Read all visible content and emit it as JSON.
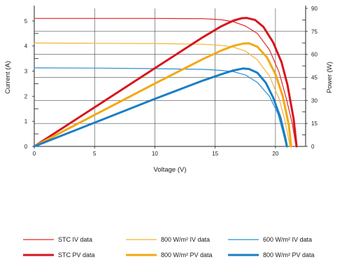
{
  "chart_data": {
    "type": "line",
    "title": "",
    "xlabel": "Voltage (V)",
    "ylabel_left": "Current (A)",
    "ylabel_right": "Power (W)",
    "xlim": [
      0,
      22.5
    ],
    "ylim_left": [
      0,
      5.5
    ],
    "ylim_right": [
      0,
      90
    ],
    "x_ticks": [
      "0",
      "5",
      "10",
      "15",
      "20"
    ],
    "y_left_ticks": [
      "0",
      "1",
      "2",
      "3",
      "4",
      "5"
    ],
    "y_right_ticks": [
      "0",
      "15",
      "30",
      "45",
      "60",
      "75",
      "90"
    ],
    "grid": "major",
    "legend_position": "bottom",
    "series": [
      {
        "name": "STC IV data",
        "axis": "left",
        "color": "#e3262b",
        "width": 1.2,
        "points": [
          [
            0,
            5.1
          ],
          [
            5,
            5.1
          ],
          [
            10,
            5.1
          ],
          [
            14,
            5.09
          ],
          [
            15.5,
            5.05
          ],
          [
            16.5,
            4.97
          ],
          [
            17.5,
            4.8
          ],
          [
            18.5,
            4.5
          ],
          [
            19.5,
            3.85
          ],
          [
            20.3,
            2.95
          ],
          [
            20.9,
            1.9
          ],
          [
            21.4,
            0.9
          ],
          [
            21.7,
            0
          ]
        ]
      },
      {
        "name": "800 W/m² IV data",
        "axis": "left",
        "color": "#f4b333",
        "width": 1.2,
        "points": [
          [
            0,
            4.12
          ],
          [
            5,
            4.11
          ],
          [
            10,
            4.1
          ],
          [
            14,
            4.07
          ],
          [
            15.5,
            4.03
          ],
          [
            16.5,
            3.96
          ],
          [
            17.5,
            3.8
          ],
          [
            18.5,
            3.45
          ],
          [
            19.5,
            2.8
          ],
          [
            20.3,
            1.9
          ],
          [
            20.8,
            1.0
          ],
          [
            21.2,
            0
          ]
        ]
      },
      {
        "name": "600 W/m² IV data",
        "axis": "left",
        "color": "#2a8fd0",
        "width": 1.2,
        "points": [
          [
            0,
            3.13
          ],
          [
            5,
            3.12
          ],
          [
            10,
            3.1
          ],
          [
            14,
            3.07
          ],
          [
            15.5,
            3.03
          ],
          [
            16.5,
            2.98
          ],
          [
            17.5,
            2.85
          ],
          [
            18.5,
            2.55
          ],
          [
            19.5,
            2.0
          ],
          [
            20.2,
            1.3
          ],
          [
            20.6,
            0.6
          ],
          [
            20.9,
            0
          ]
        ]
      },
      {
        "name": "STC PV data",
        "axis": "right",
        "color": "#d7151e",
        "width": 3,
        "points": [
          [
            0,
            0
          ],
          [
            5,
            25.5
          ],
          [
            10,
            51
          ],
          [
            14,
            71.3
          ],
          [
            15.5,
            78.3
          ],
          [
            16.5,
            82
          ],
          [
            17.2,
            83.6
          ],
          [
            17.6,
            83.8
          ],
          [
            18.3,
            82.5
          ],
          [
            19,
            78
          ],
          [
            19.8,
            68
          ],
          [
            20.5,
            55
          ],
          [
            21,
            40
          ],
          [
            21.5,
            18
          ],
          [
            21.75,
            0
          ]
        ]
      },
      {
        "name": "800 W/m² PV data",
        "axis": "right",
        "color": "#f3a812",
        "width": 3,
        "points": [
          [
            0,
            0
          ],
          [
            5,
            20.5
          ],
          [
            10,
            41
          ],
          [
            14,
            57
          ],
          [
            15.5,
            62.5
          ],
          [
            16.5,
            65.5
          ],
          [
            17.3,
            67
          ],
          [
            17.8,
            67.3
          ],
          [
            18.5,
            65
          ],
          [
            19.3,
            58
          ],
          [
            20,
            47
          ],
          [
            20.6,
            33
          ],
          [
            21.1,
            14
          ],
          [
            21.3,
            0
          ]
        ]
      },
      {
        "name": "800 W/m² PV data",
        "axis": "right",
        "color": "#1b7ec4",
        "width": 3,
        "points": [
          [
            0,
            0
          ],
          [
            5,
            15.5
          ],
          [
            10,
            31
          ],
          [
            14,
            43
          ],
          [
            15.5,
            47
          ],
          [
            16.5,
            49.5
          ],
          [
            17.3,
            50.8
          ],
          [
            17.8,
            50.5
          ],
          [
            18.5,
            48
          ],
          [
            19.2,
            41.5
          ],
          [
            19.8,
            32
          ],
          [
            20.4,
            19
          ],
          [
            20.8,
            6
          ],
          [
            20.95,
            0
          ]
        ]
      }
    ]
  }
}
